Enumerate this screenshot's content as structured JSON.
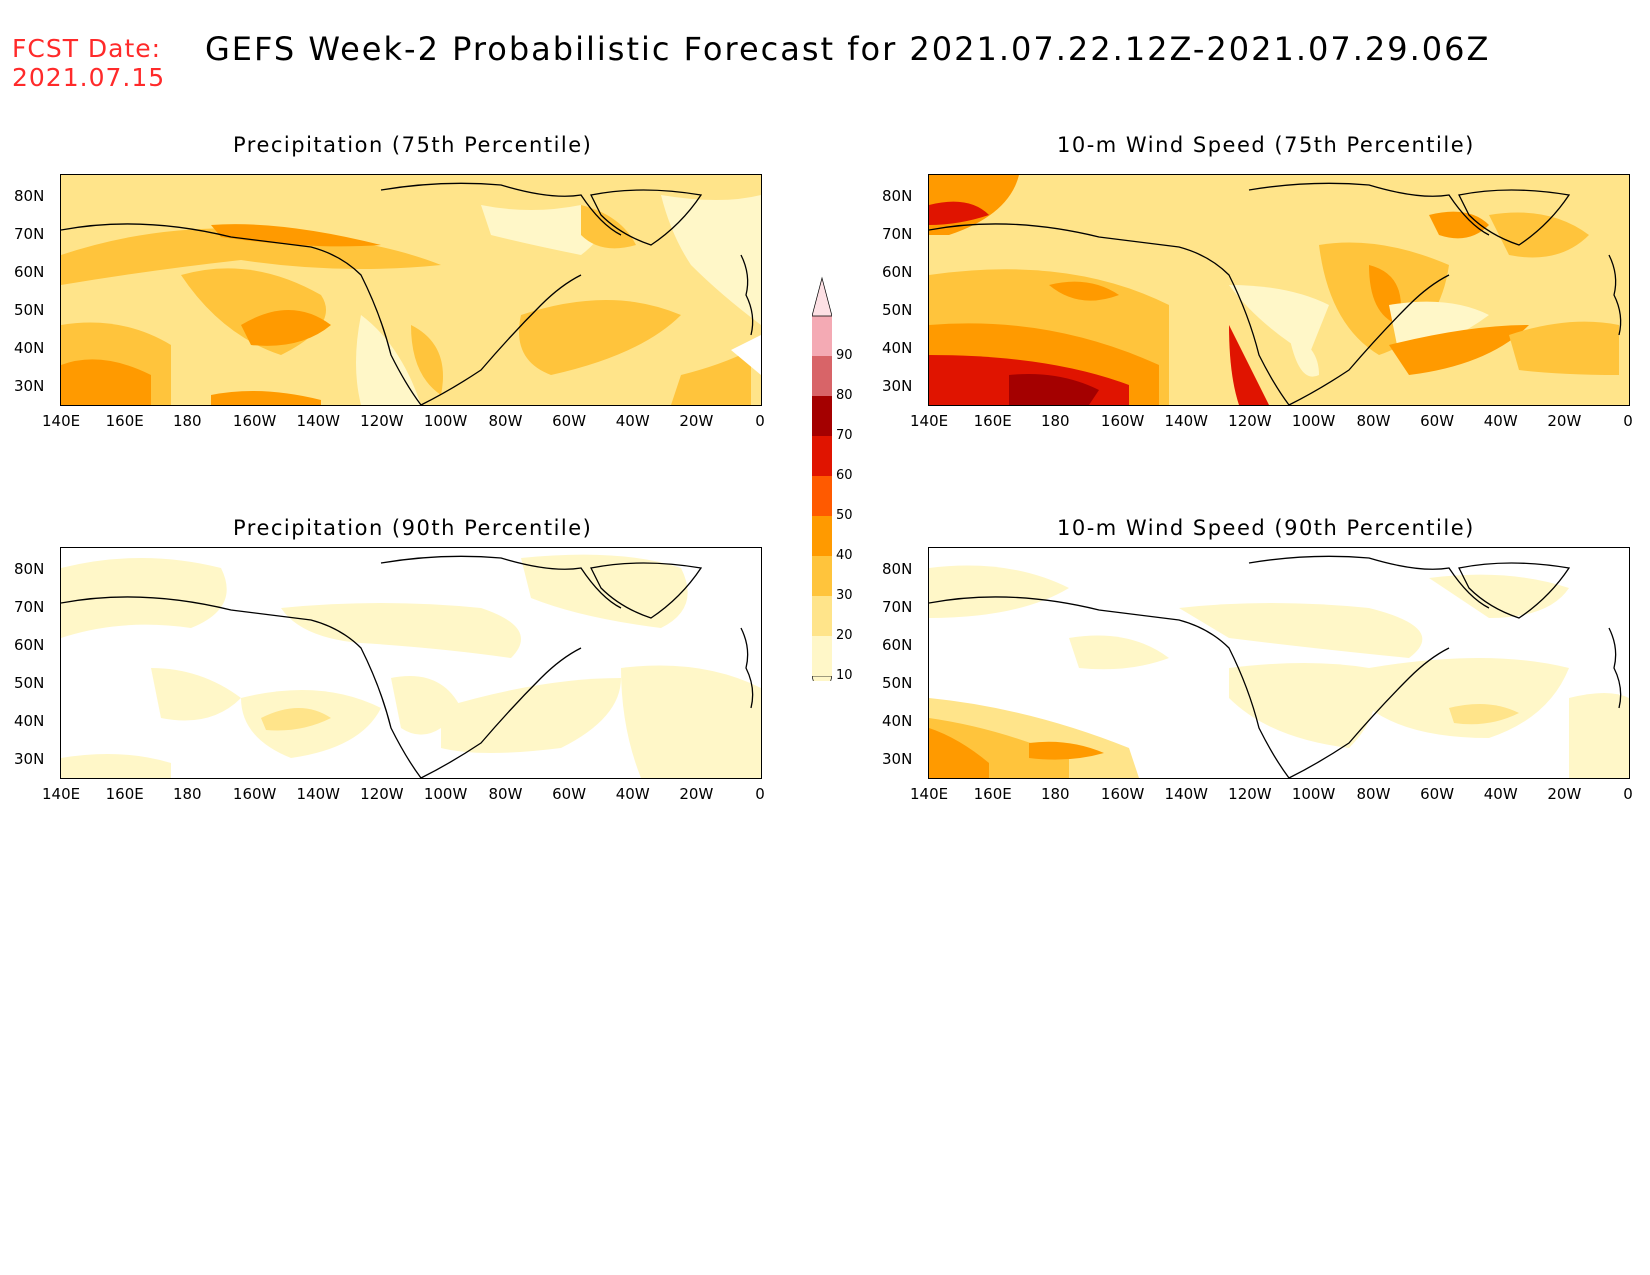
{
  "header": {
    "fcst_label": "FCST Date:",
    "fcst_date": "2021.07.15",
    "title": "GEFS Week-2 Probabilistic Forecast for 2021.07.22.12Z-2021.07.29.06Z"
  },
  "panels": [
    {
      "title": "Precipitation (75th Percentile)"
    },
    {
      "title": "10-m Wind Speed (75th Percentile)"
    },
    {
      "title": "Precipitation (90th Percentile)"
    },
    {
      "title": "10-m Wind Speed (90th Percentile)"
    }
  ],
  "axes": {
    "lon_labels": [
      "140E",
      "160E",
      "180",
      "160W",
      "140W",
      "120W",
      "100W",
      "80W",
      "60W",
      "40W",
      "20W",
      "0"
    ],
    "lat_labels": [
      "80N",
      "70N",
      "60N",
      "50N",
      "40N",
      "30N"
    ]
  },
  "colorbar": {
    "levels": [
      "10",
      "20",
      "30",
      "40",
      "50",
      "60",
      "70",
      "80",
      "90"
    ],
    "colors": [
      "#fff7c8",
      "#ffe48a",
      "#ffc43c",
      "#ff9a00",
      "#ff5a00",
      "#e01400",
      "#a40000",
      "#d86468",
      "#f4aab4",
      "#fde0e4"
    ]
  }
}
